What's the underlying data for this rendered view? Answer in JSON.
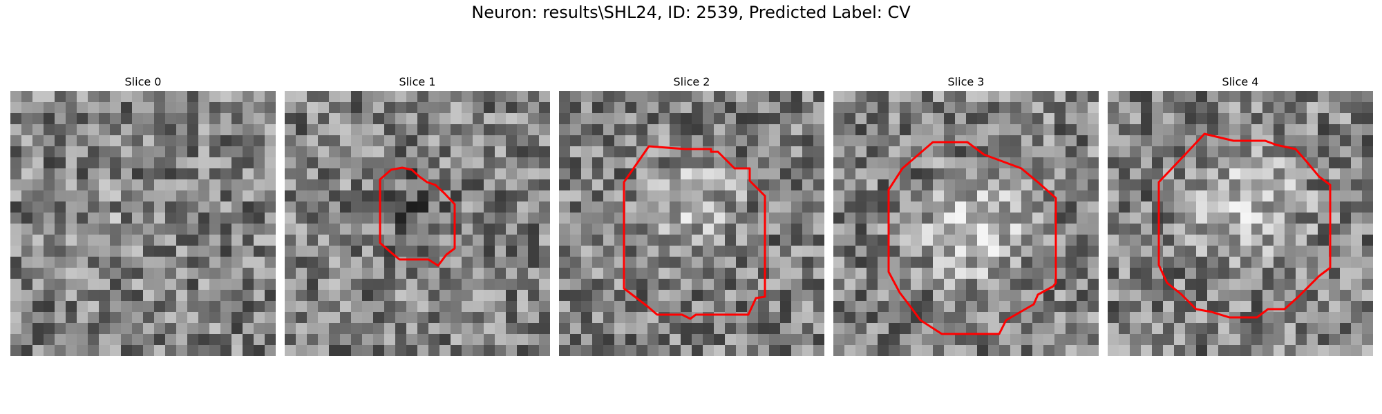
{
  "figure": {
    "title": "Neuron: results\\SHL24, ID: 2539, Predicted Label: CV"
  },
  "slices": [
    {
      "label": "Slice 0"
    },
    {
      "label": "Slice 1"
    },
    {
      "label": "Slice 2"
    },
    {
      "label": "Slice 3"
    },
    {
      "label": "Slice 4"
    }
  ],
  "colors": {
    "contour": "#ff0000",
    "background": "#ffffff"
  }
}
